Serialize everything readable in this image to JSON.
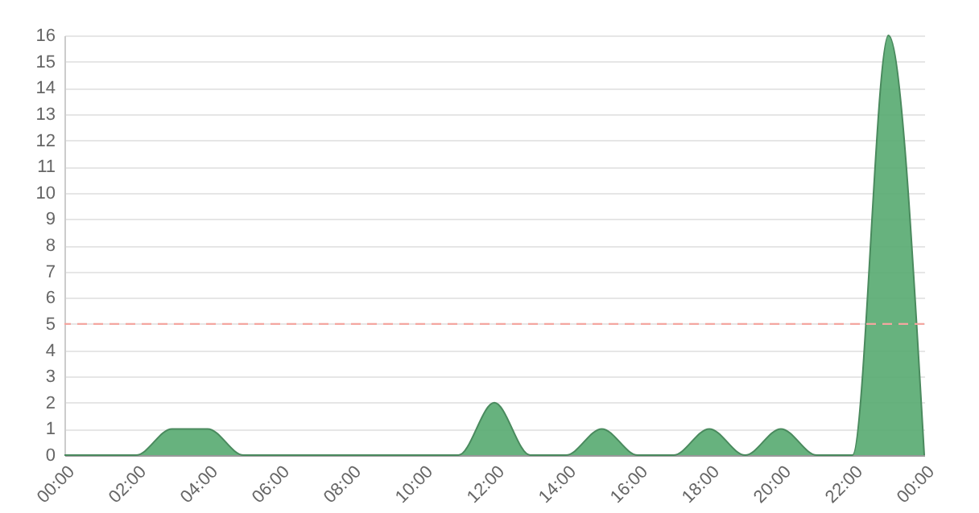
{
  "chart_data": {
    "type": "area",
    "x": [
      0,
      1,
      2,
      3,
      4,
      5,
      6,
      7,
      8,
      9,
      10,
      11,
      12,
      13,
      14,
      15,
      16,
      17,
      18,
      19,
      20,
      21,
      22,
      23,
      24
    ],
    "series": [
      {
        "color": "#5aab73",
        "values": [
          0,
          0,
          0,
          1,
          1,
          0,
          0,
          0,
          0,
          0,
          0,
          0,
          2,
          0,
          0,
          1,
          0,
          0,
          1,
          0,
          1,
          0,
          0,
          16,
          0
        ]
      }
    ],
    "xlim": [
      0,
      24
    ],
    "xticks": [
      {
        "value": 0,
        "label": "00:00"
      },
      {
        "value": 2,
        "label": "02:00"
      },
      {
        "value": 4,
        "label": "04:00"
      },
      {
        "value": 6,
        "label": "06:00"
      },
      {
        "value": 8,
        "label": "08:00"
      },
      {
        "value": 10,
        "label": "10:00"
      },
      {
        "value": 12,
        "label": "12:00"
      },
      {
        "value": 14,
        "label": "14:00"
      },
      {
        "value": 16,
        "label": "16:00"
      },
      {
        "value": 18,
        "label": "18:00"
      },
      {
        "value": 20,
        "label": "20:00"
      },
      {
        "value": 22,
        "label": "22:00"
      },
      {
        "value": 24,
        "label": "00:00"
      }
    ],
    "ylim": [
      0,
      16
    ],
    "yticks": [
      0,
      1,
      2,
      3,
      4,
      5,
      6,
      7,
      8,
      9,
      10,
      11,
      12,
      13,
      14,
      15,
      16
    ],
    "ref_lines": [
      {
        "axis": "y",
        "value": 5,
        "color": "#f4a6a0",
        "line_style": "dashed"
      }
    ],
    "grid": "y"
  }
}
